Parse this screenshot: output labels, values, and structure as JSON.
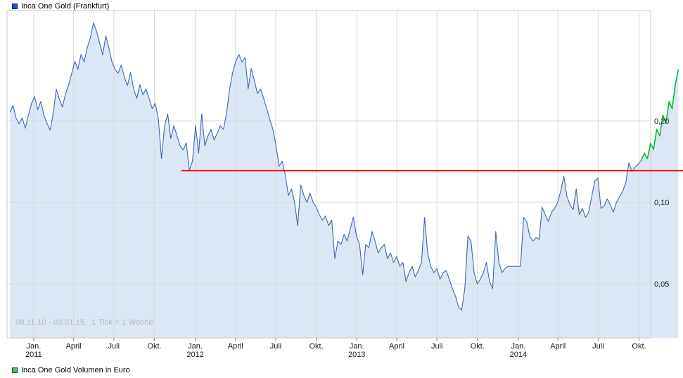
{
  "legend_top": {
    "label": "Inca One Gold (Frankfurt)",
    "color": "#2255cc",
    "border": "#0a2a6a"
  },
  "legend_bottom": {
    "label": "Inca One Gold Volumen in Euro",
    "color": "#55bb55",
    "border": "#0a5a1a"
  },
  "chart_data": {
    "type": "area",
    "title": "Inca One Gold (Frankfurt)",
    "annotation": "08.11.10 - 03.01.15   1 Tick = 1 Woche",
    "period": {
      "start": "08.11.10",
      "end": "03.01.15",
      "tick_interval": "1 Woche"
    },
    "grid": true,
    "legend_position": "top-left",
    "y_axis": {
      "scale": "log",
      "side": "right",
      "unit": "EUR",
      "range": [
        0.032,
        0.51
      ],
      "ticks": [
        {
          "label": "0,20",
          "value": 0.2
        },
        {
          "label": "0,10",
          "value": 0.1
        },
        {
          "label": "0,05",
          "value": 0.05
        }
      ]
    },
    "x_axis": {
      "unit": "weeks since 08.11.10",
      "ticks": [
        {
          "label": "Jan.",
          "year": "2011",
          "week": 7.7
        },
        {
          "label": "April",
          "week": 20.6
        },
        {
          "label": "Juli",
          "week": 33.6
        },
        {
          "label": "Okt.",
          "week": 46.7
        },
        {
          "label": "Jan.",
          "year": "2012",
          "week": 59.9
        },
        {
          "label": "April",
          "week": 72.9
        },
        {
          "label": "Juli",
          "week": 85.9
        },
        {
          "label": "Okt.",
          "week": 99.0
        },
        {
          "label": "Jan.",
          "year": "2013",
          "week": 112.1
        },
        {
          "label": "April",
          "week": 125.0
        },
        {
          "label": "Juli",
          "week": 138.0
        },
        {
          "label": "Okt.",
          "week": 151.1
        },
        {
          "label": "Jan.",
          "year": "2014",
          "week": 164.3
        },
        {
          "label": "April",
          "week": 177.1
        },
        {
          "label": "Juli",
          "week": 190.1
        },
        {
          "label": "Okt.",
          "week": 203.3
        }
      ]
    },
    "series": [
      {
        "name": "Inca One Gold price history",
        "color": "#3c66b1",
        "fill": "#dae6f5",
        "start_week": 0,
        "values": [
          0.215,
          0.228,
          0.205,
          0.195,
          0.205,
          0.188,
          0.21,
          0.232,
          0.246,
          0.22,
          0.236,
          0.21,
          0.196,
          0.185,
          0.212,
          0.262,
          0.24,
          0.225,
          0.252,
          0.272,
          0.3,
          0.332,
          0.31,
          0.352,
          0.33,
          0.372,
          0.405,
          0.46,
          0.43,
          0.388,
          0.35,
          0.412,
          0.372,
          0.33,
          0.31,
          0.3,
          0.322,
          0.29,
          0.27,
          0.302,
          0.262,
          0.242,
          0.272,
          0.25,
          0.262,
          0.242,
          0.222,
          0.232,
          0.202,
          0.145,
          0.192,
          0.212,
          0.172,
          0.192,
          0.176,
          0.162,
          0.156,
          0.166,
          0.131,
          0.142,
          0.192,
          0.152,
          0.212,
          0.162,
          0.176,
          0.186,
          0.17,
          0.18,
          0.192,
          0.186,
          0.212,
          0.262,
          0.302,
          0.332,
          0.352,
          0.33,
          0.342,
          0.262,
          0.312,
          0.282,
          0.252,
          0.262,
          0.242,
          0.222,
          0.202,
          0.186,
          0.162,
          0.136,
          0.142,
          0.126,
          0.106,
          0.112,
          0.1,
          0.082,
          0.116,
          0.106,
          0.1,
          0.108,
          0.1,
          0.096,
          0.09,
          0.086,
          0.089,
          0.082,
          0.086,
          0.062,
          0.072,
          0.07,
          0.076,
          0.072,
          0.08,
          0.088,
          0.075,
          0.07,
          0.054,
          0.07,
          0.068,
          0.078,
          0.072,
          0.065,
          0.068,
          0.07,
          0.062,
          0.065,
          0.06,
          0.063,
          0.058,
          0.06,
          0.051,
          0.055,
          0.058,
          0.053,
          0.056,
          0.06,
          0.088,
          0.065,
          0.058,
          0.055,
          0.057,
          0.052,
          0.055,
          0.056,
          0.052,
          0.048,
          0.045,
          0.041,
          0.04,
          0.048,
          0.075,
          0.072,
          0.055,
          0.05,
          0.052,
          0.055,
          0.06,
          0.051,
          0.048,
          0.078,
          0.06,
          0.055,
          0.057,
          0.058,
          0.058,
          0.058,
          0.058,
          0.058,
          0.088,
          0.085,
          0.075,
          0.072,
          0.074,
          0.073,
          0.096,
          0.09,
          0.085,
          0.092,
          0.095,
          0.1,
          0.11,
          0.125,
          0.105,
          0.098,
          0.094,
          0.112,
          0.09,
          0.095,
          0.088,
          0.092,
          0.105,
          0.12,
          0.123,
          0.095,
          0.097,
          0.103,
          0.098,
          0.092,
          0.1,
          0.105,
          0.11,
          0.118,
          0.14,
          0.13,
          0.135,
          0.138,
          0.143
        ]
      },
      {
        "name": "recent uptrend segment",
        "color": "#00b432",
        "start_week": 204,
        "values": [
          0.143,
          0.152,
          0.145,
          0.165,
          0.157,
          0.186,
          0.176,
          0.21,
          0.196,
          0.236,
          0.222,
          0.272,
          0.31
        ]
      }
    ],
    "trend_line": {
      "name": "horizontal trend line",
      "color": "#ff0000",
      "value": 0.131,
      "start_week": 55.5,
      "extend_to_right_edge": true
    }
  }
}
